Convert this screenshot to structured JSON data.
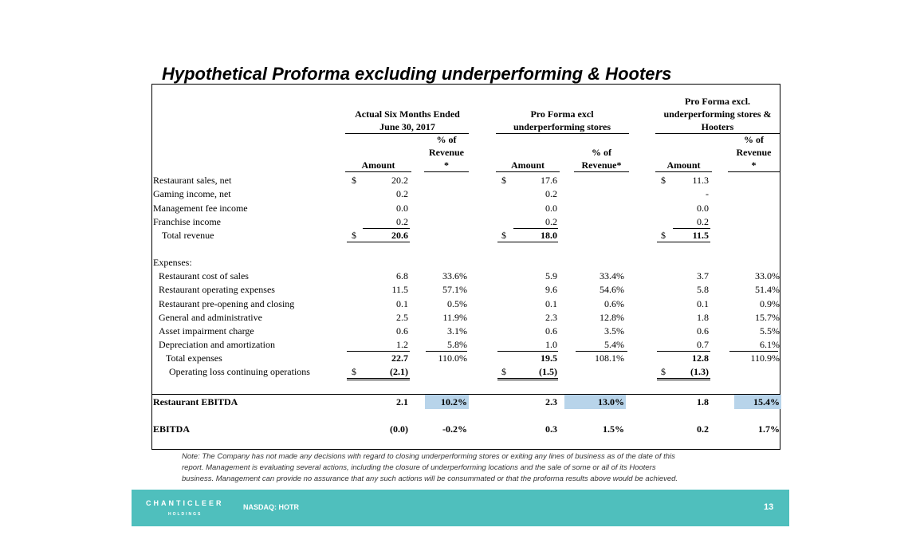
{
  "title": "Hypothetical Proforma excluding underperforming & Hooters",
  "table": {
    "groups": [
      {
        "lines": [
          "Actual Six Months Ended",
          "June 30, 2017"
        ]
      },
      {
        "lines": [
          "Pro Forma excl",
          "underperforming stores"
        ]
      },
      {
        "lines": [
          "Pro Forma excl.",
          "underperforming stores &",
          "Hooters"
        ]
      }
    ],
    "subheaders": [
      {
        "amount": "Amount",
        "percent": [
          "% of",
          "Revenue",
          "*"
        ]
      },
      {
        "amount": "Amount",
        "percent": [
          "% of",
          "Revenue*"
        ]
      },
      {
        "amount": "Amount",
        "percent": [
          "% of",
          "Revenue",
          "*"
        ]
      }
    ],
    "rows": [
      [
        "Restaurant sales, net",
        "$",
        "20.2",
        null,
        "$",
        "17.6",
        null,
        "$",
        "11.3",
        null
      ],
      [
        "Gaming income, net",
        null,
        "0.2",
        null,
        null,
        "0.2",
        null,
        null,
        "-",
        null
      ],
      [
        "Management fee income",
        null,
        "0.0",
        null,
        null,
        "0.0",
        null,
        null,
        "0.0",
        null
      ],
      [
        "Franchise income",
        null,
        "0.2",
        null,
        null,
        "0.2",
        null,
        null,
        "0.2",
        null
      ],
      [
        "Total revenue",
        "$",
        "20.6",
        null,
        "$",
        "18.0",
        null,
        "$",
        "11.5",
        null
      ],
      [
        "Expenses:",
        null,
        null,
        null,
        null,
        null,
        null,
        null,
        null,
        null
      ],
      [
        "Restaurant cost of sales",
        null,
        "6.8",
        "33.6%",
        null,
        "5.9",
        "33.4%",
        null,
        "3.7",
        "33.0%"
      ],
      [
        "Restaurant operating expenses",
        null,
        "11.5",
        "57.1%",
        null,
        "9.6",
        "54.6%",
        null,
        "5.8",
        "51.4%"
      ],
      [
        "Restaurant pre-opening and closing",
        null,
        "0.1",
        "0.5%",
        null,
        "0.1",
        "0.6%",
        null,
        "0.1",
        "0.9%"
      ],
      [
        "General and administrative",
        null,
        "2.5",
        "11.9%",
        null,
        "2.3",
        "12.8%",
        null,
        "1.8",
        "15.7%"
      ],
      [
        "Asset impairment charge",
        null,
        "0.6",
        "3.1%",
        null,
        "0.6",
        "3.5%",
        null,
        "0.6",
        "5.5%"
      ],
      [
        "Depreciation and amortization",
        null,
        "1.2",
        "5.8%",
        null,
        "1.0",
        "5.4%",
        null,
        "0.7",
        "6.1%"
      ],
      [
        "Total expenses",
        null,
        "22.7",
        "110.0%",
        null,
        "19.5",
        "108.1%",
        null,
        "12.8",
        "110.9%"
      ],
      [
        "Operating loss continuing operations",
        "$",
        "(2.1)",
        null,
        "$",
        "(1.5)",
        null,
        "$",
        "(1.3)",
        null
      ]
    ],
    "summary_rows": [
      [
        "Restaurant EBITDA",
        "2.1",
        "10.2%",
        "2.3",
        "13.0%",
        "1.8",
        "15.4%"
      ],
      [
        "EBITDA",
        "(0.0)",
        "-0.2%",
        "0.3",
        "1.5%",
        "0.2",
        "1.7%"
      ]
    ]
  },
  "note": [
    "Note: The Company has not made any decisions with regard to closing underperforming stores or exiting any lines of business as of the date of this",
    "report. Management is evaluating several actions, including the closure of underperforming locations and the sale of some or all of its Hooters",
    "business. Management can provide no assurance that any such actions will be consummated or that the proforma results above would be achieved."
  ],
  "footer": {
    "logo": "CHANTICLEER",
    "logo_sub": "HOLDINGS",
    "ticker": "NASDAQ: HOTR",
    "page": "13"
  }
}
